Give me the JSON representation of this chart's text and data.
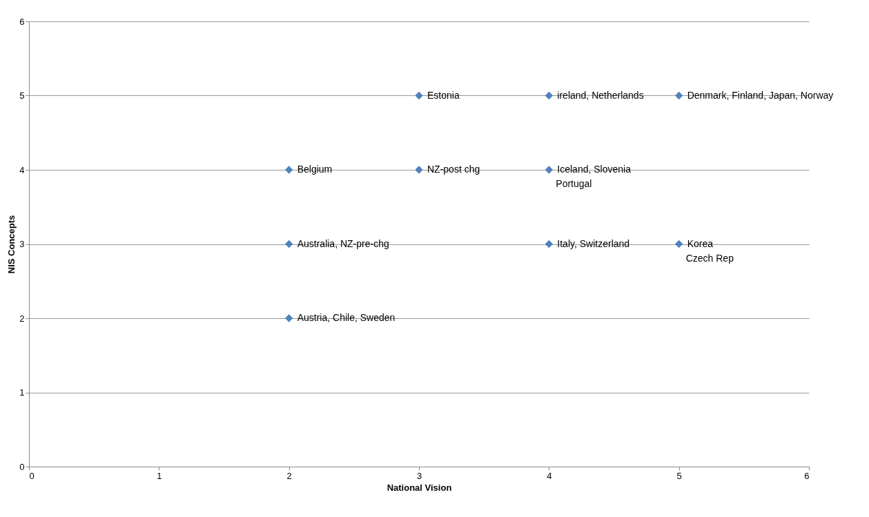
{
  "chart_data": {
    "type": "scatter",
    "xlabel": "National Vision",
    "ylabel": "NIS Concepts",
    "series": [
      {
        "color": "#4f81bd",
        "x": [
          2,
          2,
          2,
          3,
          3,
          4,
          4,
          4,
          5,
          5
        ],
        "values": [
          2,
          3,
          4,
          4,
          5,
          5,
          4,
          3,
          5,
          3
        ]
      }
    ],
    "xlim": [
      0,
      6
    ],
    "xticks": [
      0,
      1,
      2,
      3,
      4,
      5,
      6
    ],
    "ylim": [
      0,
      6
    ],
    "yticks": [
      0,
      1,
      2,
      3,
      4,
      5,
      6
    ],
    "grid": "y",
    "marker": "diamond",
    "annotations": [
      {
        "text": "Austria, Chile, Sweden",
        "x": 2,
        "y": 2
      },
      {
        "text": "Australia, NZ-pre-chg",
        "x": 2,
        "y": 3
      },
      {
        "text": "Belgium",
        "x": 2,
        "y": 4
      },
      {
        "text": "NZ-post chg",
        "x": 3,
        "y": 4
      },
      {
        "text": "Estonia",
        "x": 3,
        "y": 5
      },
      {
        "text": "ireland, Netherlands",
        "x": 4,
        "y": 5
      },
      {
        "text": "Iceland, Slovenia",
        "x": 4,
        "y": 4
      },
      {
        "text": "Portugal",
        "x": 4,
        "y": 4
      },
      {
        "text": "Italy, Switzerland",
        "x": 4,
        "y": 3
      },
      {
        "text": "Denmark, Finland, Japan, Norway",
        "x": 5,
        "y": 5
      },
      {
        "text": "Korea",
        "x": 5,
        "y": 3
      },
      {
        "text": "Czech Rep",
        "x": 5,
        "y": 3
      }
    ]
  }
}
